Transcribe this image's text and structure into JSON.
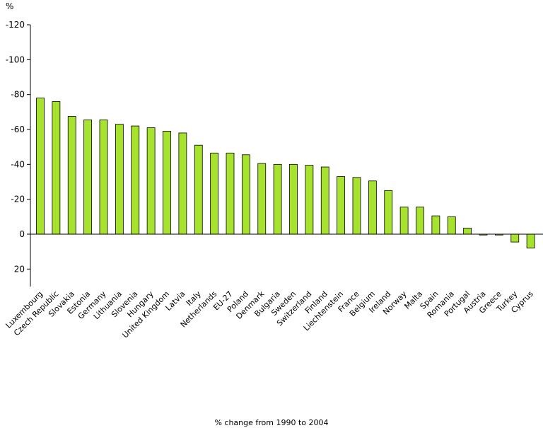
{
  "chart_data": {
    "type": "bar",
    "ylabel": "%",
    "xlabel": "% change from 1990 to 2004",
    "yaxis_inverted": true,
    "ylim": [
      -120,
      30
    ],
    "yticks": [
      -120,
      -100,
      -80,
      -60,
      -40,
      -20,
      0,
      20
    ],
    "grid": false,
    "bar_color": "#a6e22e",
    "categories": [
      "Luxembourg",
      "Czech Republic",
      "Slovakia",
      "Estonia",
      "Germany",
      "Lithuania",
      "Slovenia",
      "Hungary",
      "United Kingdom",
      "Latvia",
      "Italy",
      "Netherlands",
      "EU-27",
      "Poland",
      "Denmark",
      "Bulgaria",
      "Sweden",
      "Switzerland",
      "Finland",
      "Liechtenstein",
      "France",
      "Belgium",
      "Ireland",
      "Norway",
      "Malta",
      "Spain",
      "Romania",
      "Portugal",
      "Austria",
      "Greece",
      "Turkey",
      "Cyprus"
    ],
    "values": [
      -78,
      -76,
      -67.5,
      -65.5,
      -65.5,
      -63,
      -62,
      -61,
      -59,
      -58,
      -51,
      -46.5,
      -46.5,
      -45.5,
      -40.5,
      -40,
      -40,
      -39.5,
      -38.5,
      -33,
      -32.5,
      -30.5,
      -25,
      -15.5,
      -15.5,
      -10.5,
      -10,
      -3.5,
      0.5,
      0.5,
      4.5,
      8
    ]
  }
}
